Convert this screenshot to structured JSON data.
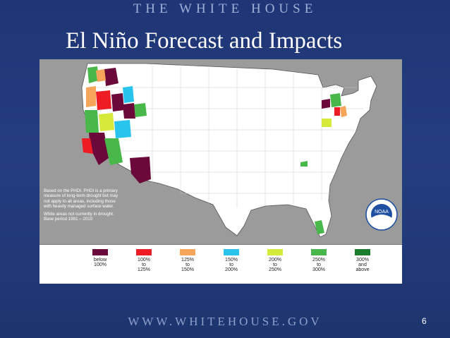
{
  "header": {
    "brand": "THE WHITE HOUSE"
  },
  "slide": {
    "title": "El Niño Forecast and Impacts",
    "page_number": "6"
  },
  "map": {
    "note_lines": [
      "Based on the PHDI. PHDI is a primary measure of long-term drought but may not apply to all areas, including those with heavily managed surface water.",
      "White areas not currently in drought. Base period 1981 – 2010"
    ],
    "logo_text": "NOAA",
    "legend": [
      {
        "label": "below\n100%",
        "color": "#6b0a3a"
      },
      {
        "label": "100%\nto\n125%",
        "color": "#ee1c24"
      },
      {
        "label": "125%\nto\n150%",
        "color": "#f7a55a"
      },
      {
        "label": "150%\nto\n200%",
        "color": "#29c4ee"
      },
      {
        "label": "200%\nto\n250%",
        "color": "#d5ea3a"
      },
      {
        "label": "250%\nto\n300%",
        "color": "#49b84a"
      },
      {
        "label": "300%\nand\nabove",
        "color": "#1a7d2e"
      }
    ]
  },
  "footer": {
    "url": "WWW.WHITEHOUSE.GOV"
  }
}
